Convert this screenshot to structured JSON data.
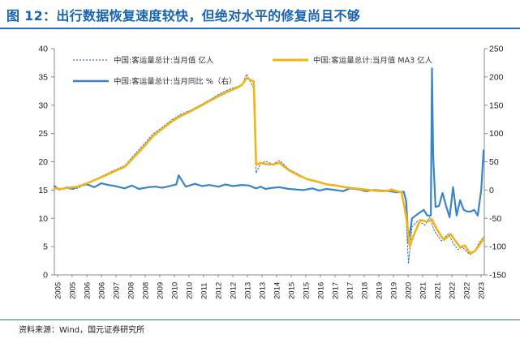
{
  "title": "图 12：出行数据恢复速度较快，但绝对水平的修复尚且不够",
  "source": "资料来源：Wind，国元证券研究所",
  "colors": {
    "title": "#1a63b0",
    "monthly": "#3a73b5",
    "ma3": "#f2b517",
    "yoy": "#3a84c8",
    "axis": "#888888"
  },
  "chart_data": {
    "type": "line",
    "title": "",
    "xlabel": "",
    "ylabel": "",
    "ylabel_right": "",
    "ylim": [
      0,
      40
    ],
    "y_ticks": [
      0,
      5,
      10,
      15,
      20,
      25,
      30,
      35,
      40
    ],
    "y2lim": [
      -150,
      250
    ],
    "y2_ticks": [
      -150,
      -100,
      -50,
      0,
      50,
      100,
      150,
      200,
      250
    ],
    "x_ticks": [
      "2005",
      "2005",
      "2006",
      "2006",
      "2007",
      "2008",
      "2008",
      "2009",
      "2010",
      "2010",
      "2011",
      "2012",
      "2012",
      "2013",
      "2013",
      "2014",
      "2015",
      "2015",
      "2016",
      "2017",
      "2017",
      "2018",
      "2019",
      "2019",
      "2020",
      "2021",
      "2021",
      "2022",
      "2022",
      "2023"
    ],
    "legend_placement": "top",
    "grid": false,
    "series": [
      {
        "name": "中国:客运量总计:当月值 亿人",
        "axis": "left",
        "style": "dashed",
        "x": [
          2005.0,
          2005.3,
          2005.6,
          2006.0,
          2006.4,
          2006.8,
          2007.2,
          2007.6,
          2008.0,
          2008.4,
          2008.8,
          2009.2,
          2009.6,
          2010.0,
          2010.4,
          2010.8,
          2011.2,
          2011.6,
          2012.0,
          2012.4,
          2012.8,
          2013.0,
          2013.2,
          2013.5,
          2013.6,
          2013.8,
          2014.0,
          2014.3,
          2014.6,
          2015.0,
          2015.4,
          2015.8,
          2016.2,
          2016.6,
          2017.0,
          2017.4,
          2017.8,
          2018.2,
          2018.6,
          2019.0,
          2019.4,
          2019.8,
          2020.0,
          2020.1,
          2020.25,
          2020.5,
          2020.8,
          2021.0,
          2021.2,
          2021.5,
          2021.8,
          2022.0,
          2022.2,
          2022.4,
          2022.7,
          2022.9,
          2023.1,
          2023.3
        ],
        "y": [
          15.5,
          15.1,
          15.6,
          15.3,
          16.2,
          17.0,
          17.8,
          18.6,
          19.3,
          21.2,
          23.0,
          24.9,
          26.1,
          27.4,
          28.4,
          29.1,
          30.0,
          30.9,
          31.9,
          32.7,
          33.3,
          33.6,
          35.5,
          33.0,
          18.0,
          19.7,
          20.1,
          19.6,
          20.2,
          18.7,
          17.8,
          16.9,
          16.6,
          16.0,
          15.9,
          15.6,
          15.4,
          15.2,
          15.0,
          14.8,
          15.2,
          14.6,
          9.5,
          2.0,
          8.5,
          9.6,
          8.8,
          10.2,
          7.8,
          6.0,
          7.3,
          5.6,
          4.5,
          4.9,
          3.6,
          4.0,
          5.6,
          6.7
        ]
      },
      {
        "name": "中国:客运量总计:当月值 MA3 亿人",
        "axis": "left",
        "style": "solid",
        "x": [
          2005.0,
          2005.3,
          2005.6,
          2006.0,
          2006.4,
          2006.8,
          2007.2,
          2007.6,
          2008.0,
          2008.4,
          2008.8,
          2009.2,
          2009.6,
          2010.0,
          2010.4,
          2010.8,
          2011.2,
          2011.6,
          2012.0,
          2012.4,
          2012.8,
          2013.0,
          2013.2,
          2013.5,
          2013.6,
          2013.8,
          2014.0,
          2014.3,
          2014.6,
          2015.0,
          2015.4,
          2015.8,
          2016.2,
          2016.6,
          2017.0,
          2017.4,
          2017.8,
          2018.2,
          2018.6,
          2019.0,
          2019.4,
          2019.8,
          2020.0,
          2020.15,
          2020.3,
          2020.6,
          2020.9,
          2021.1,
          2021.3,
          2021.6,
          2021.9,
          2022.1,
          2022.3,
          2022.5,
          2022.7,
          2022.9,
          2023.1,
          2023.3
        ],
        "y": [
          15.3,
          15.2,
          15.4,
          15.6,
          16.2,
          16.9,
          17.6,
          18.4,
          19.1,
          20.8,
          22.6,
          24.5,
          25.8,
          27.1,
          28.1,
          28.9,
          29.8,
          30.7,
          31.6,
          32.4,
          33.1,
          33.6,
          34.8,
          34.2,
          19.5,
          19.8,
          19.6,
          19.5,
          19.8,
          18.5,
          17.6,
          16.9,
          16.5,
          16.0,
          15.8,
          15.5,
          15.3,
          15.1,
          14.9,
          14.8,
          15.0,
          14.6,
          10.5,
          5.0,
          6.8,
          9.7,
          9.4,
          9.8,
          8.1,
          6.2,
          7.2,
          6.0,
          4.9,
          5.2,
          3.9,
          4.1,
          5.1,
          6.4
        ]
      },
      {
        "name": "中国:客运量总计:当月同比 %（右）",
        "axis": "right",
        "style": "solid",
        "x": [
          2005.0,
          2005.2,
          2005.5,
          2005.8,
          2006.1,
          2006.4,
          2006.7,
          2007.0,
          2007.3,
          2007.6,
          2008.0,
          2008.3,
          2008.6,
          2009.0,
          2009.3,
          2009.6,
          2010.0,
          2010.2,
          2010.3,
          2010.6,
          2011.0,
          2011.3,
          2011.6,
          2012.0,
          2012.3,
          2012.6,
          2013.0,
          2013.3,
          2013.6,
          2013.8,
          2014.0,
          2014.3,
          2014.6,
          2015.0,
          2015.3,
          2015.6,
          2016.0,
          2016.3,
          2016.6,
          2017.0,
          2017.3,
          2017.6,
          2018.0,
          2018.3,
          2018.6,
          2019.0,
          2019.3,
          2019.6,
          2019.9,
          2020.0,
          2020.1,
          2020.25,
          2020.5,
          2020.75,
          2020.9,
          2021.05,
          2021.1,
          2021.15,
          2021.25,
          2021.4,
          2021.55,
          2021.7,
          2021.85,
          2022.0,
          2022.15,
          2022.3,
          2022.45,
          2022.6,
          2022.75,
          2022.9,
          2023.05,
          2023.2,
          2023.3
        ],
        "y": [
          7,
          1,
          4,
          2,
          8,
          10,
          5,
          12,
          9,
          7,
          3,
          8,
          2,
          5,
          6,
          4,
          8,
          10,
          26,
          6,
          11,
          7,
          9,
          6,
          10,
          7,
          9,
          8,
          3,
          6,
          2,
          4,
          5,
          2,
          1,
          0,
          3,
          -1,
          2,
          0,
          -2,
          3,
          1,
          -2,
          0,
          -1,
          -2,
          -4,
          -3,
          -20,
          -93,
          -50,
          -42,
          -35,
          -45,
          -45,
          215,
          60,
          -30,
          -28,
          -5,
          -28,
          -48,
          5,
          -45,
          -18,
          -35,
          -38,
          -38,
          -35,
          -45,
          0,
          70
        ]
      }
    ]
  }
}
